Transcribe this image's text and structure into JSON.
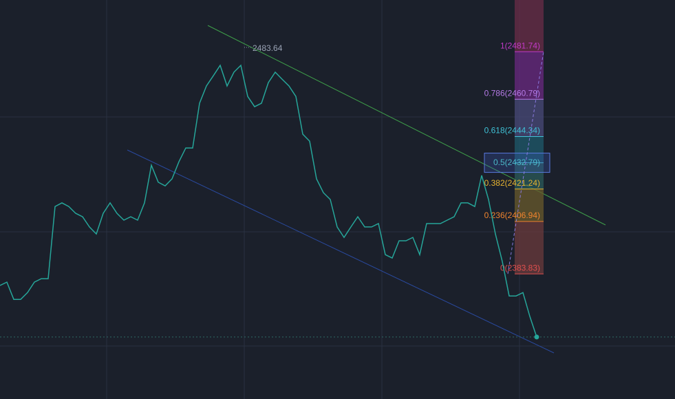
{
  "chart_data": {
    "type": "line",
    "ylim": [
      2328.7,
      2504.5
    ],
    "grid": true,
    "series": [
      {
        "color": "#26a69a",
        "values": [
          2378.7,
          2380.2,
          2372.6,
          2372.6,
          2375.6,
          2380.2,
          2381.7,
          2381.7,
          2413.5,
          2415.1,
          2413.5,
          2410.5,
          2409.0,
          2404.5,
          2401.4,
          2410.5,
          2415.1,
          2410.5,
          2407.5,
          2409.0,
          2407.5,
          2415.1,
          2431.7,
          2424.2,
          2422.6,
          2425.7,
          2433.2,
          2439.3,
          2439.3,
          2459.0,
          2466.6,
          2471.1,
          2475.7,
          2466.6,
          2472.7,
          2475.7,
          2462.0,
          2457.5,
          2459.0,
          2468.1,
          2472.7,
          2469.6,
          2466.6,
          2462.0,
          2445.4,
          2442.3,
          2425.7,
          2419.6,
          2416.6,
          2404.5,
          2399.9,
          2404.5,
          2409.0,
          2404.5,
          2404.5,
          2406.0,
          2392.3,
          2390.8,
          2398.4,
          2398.4,
          2399.9,
          2392.3,
          2406.0,
          2406.0,
          2406.0,
          2407.5,
          2409.0,
          2415.1,
          2415.1,
          2413.5,
          2427.2,
          2416.6,
          2401.4,
          2389.3,
          2374.1,
          2374.1,
          2375.6,
          2365.1,
          2356.0
        ]
      }
    ],
    "high": {
      "value": 2483.64,
      "label": "2483.64"
    },
    "fib": {
      "levels": [
        {
          "value": 2481.74,
          "label": "1(2481.74)",
          "color": "#c23ac8"
        },
        {
          "value": 2460.79,
          "label": "0.786(2460.79)",
          "color": "#b57ae6"
        },
        {
          "value": 2444.34,
          "label": "0.618(2444.34)",
          "color": "#3fc1d6"
        },
        {
          "value": 2432.79,
          "label": "0.5(2432.79)",
          "color": "#4bb9c9"
        },
        {
          "value": 2421.24,
          "label": "0.382(2421.24)",
          "color": "#e6b330"
        },
        {
          "value": 2406.94,
          "label": "0.236(2406.94)",
          "color": "#f0842e"
        },
        {
          "value": 2383.83,
          "label": "0(2383.83)",
          "color": "#e2504f"
        }
      ],
      "zone_colors": [
        "#6b2c48",
        "#6b2882",
        "#4a4a7a",
        "#1f5a6c",
        "#2b5a5a",
        "#6a5a2c",
        "#6b3a3c"
      ]
    }
  }
}
